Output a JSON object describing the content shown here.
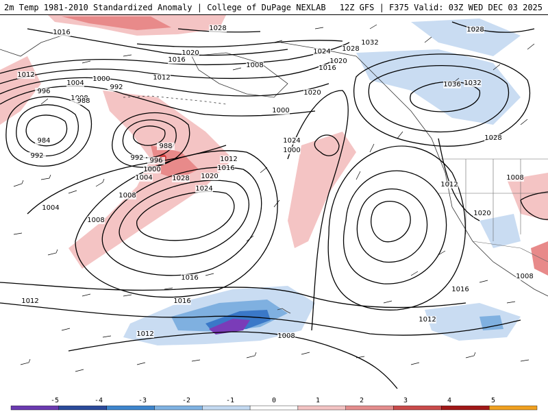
{
  "header": {
    "title_left": "2m Temp 1981-2010 Standardized Anomaly | College of DuPage NEXLAB",
    "title_right": "12Z GFS | F375 Valid: 03Z WED DEC 03 2025"
  },
  "map": {
    "isobar_labels": [
      "1016",
      "1028",
      "1028",
      "1020",
      "1016",
      "1024",
      "1028",
      "1032",
      "1028",
      "1012",
      "1008",
      "1004",
      "1000",
      "992",
      "1008",
      "1012",
      "1020",
      "1016",
      "996",
      "988",
      "1036",
      "1032",
      "984",
      "992",
      "1000",
      "1024",
      "1020",
      "1028",
      "988",
      "992",
      "996",
      "1000",
      "1004",
      "1012",
      "1016",
      "1020",
      "1024",
      "1000",
      "1004",
      "1008",
      "1008",
      "1008",
      "1012",
      "1020",
      "1016",
      "1008",
      "1016",
      "1012",
      "1016",
      "1012",
      "1012",
      "1008",
      "1008",
      "1012"
    ],
    "anomaly_colors": {
      "warm_light": "#f4c4c4",
      "warm_mid": "#e88a8a",
      "warm_strong": "#d03c3c",
      "cool_light": "#c9dcf2",
      "cool_mid": "#7fb0e0",
      "cool_strong": "#3a78c8",
      "cool_extreme": "#7a3cb8"
    }
  },
  "colorbar": {
    "ticks": [
      "-5",
      "-4",
      "-3",
      "-2",
      "-1",
      "0",
      "1",
      "2",
      "3",
      "4",
      "5"
    ],
    "colors": [
      "#6a3ab0",
      "#2b4a9a",
      "#3d85cc",
      "#7fb2e2",
      "#c3d9f1",
      "#ffffff",
      "#f3c3c3",
      "#e48d8d",
      "#c94a4a",
      "#a01818",
      "#f0a020"
    ]
  }
}
